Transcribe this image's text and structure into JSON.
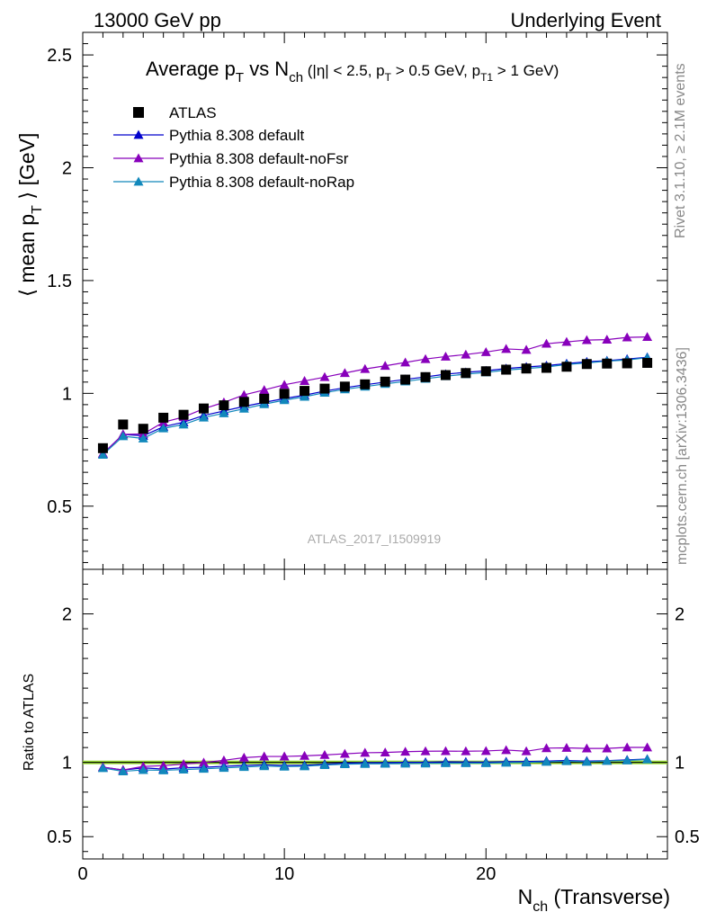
{
  "header": {
    "left": "13000 GeV pp",
    "right": "Underlying Event"
  },
  "title": {
    "main": "Average p",
    "main_sub": "T",
    "vs": " vs N",
    "vs_sub": "ch",
    "cuts_a": " (|η| < 2.5, p",
    "cuts_sub1": "T",
    "cuts_b": " > 0.5 GeV, p",
    "cuts_sub2": "T1",
    "cuts_c": " > 1 GeV)"
  },
  "side_labels": {
    "rivet": "Rivet 3.1.10, ≥ 2.1M events",
    "mcplots": "mcplots.cern.ch [arXiv:1306.3436]"
  },
  "analysis_id": "ATLAS_2017_I1509919",
  "colors": {
    "data": "#000000",
    "default": "#0000cc",
    "noFsr": "#8800bb",
    "noRap": "#1188bb",
    "ratio_band": "#99dd33"
  },
  "chart_data": [
    {
      "type": "scatter",
      "panel": "main",
      "ylabel_main": "⟨ mean p",
      "ylabel_sub": "T",
      "ylabel_tail": " ⟩ [GeV]",
      "xlim": [
        0,
        29
      ],
      "ylim": [
        0.22,
        2.6
      ],
      "yticks": [
        "0.5",
        "1",
        "1.5",
        "2",
        "2.5"
      ],
      "grid": false,
      "legend_position": "top-left",
      "x": [
        1,
        2,
        3,
        4,
        5,
        6,
        7,
        8,
        9,
        10,
        11,
        12,
        13,
        14,
        15,
        16,
        17,
        18,
        19,
        20,
        21,
        22,
        23,
        24,
        25,
        26,
        27,
        28
      ],
      "series": [
        {
          "name": "ATLAS",
          "marker": "square",
          "color": "#000000",
          "values": [
            0.757,
            0.862,
            0.843,
            0.892,
            0.905,
            0.933,
            0.947,
            0.962,
            0.976,
            0.998,
            1.011,
            1.021,
            1.03,
            1.04,
            1.052,
            1.061,
            1.072,
            1.081,
            1.09,
            1.098,
            1.105,
            1.11,
            1.113,
            1.118,
            1.13,
            1.132,
            1.133,
            1.135
          ]
        },
        {
          "name": "Pythia 8.308 default",
          "marker": "triangle",
          "color": "#0000cc",
          "values": [
            0.733,
            0.818,
            0.812,
            0.852,
            0.872,
            0.902,
            0.922,
            0.942,
            0.96,
            0.977,
            0.992,
            1.01,
            1.025,
            1.038,
            1.05,
            1.062,
            1.073,
            1.085,
            1.093,
            1.1,
            1.11,
            1.117,
            1.123,
            1.132,
            1.14,
            1.145,
            1.152,
            1.16
          ]
        },
        {
          "name": "Pythia 8.308 default-noFsr",
          "marker": "triangle",
          "color": "#8800bb",
          "values": [
            0.733,
            0.818,
            0.82,
            0.872,
            0.895,
            0.932,
            0.96,
            0.993,
            1.015,
            1.038,
            1.055,
            1.072,
            1.09,
            1.108,
            1.122,
            1.137,
            1.152,
            1.163,
            1.172,
            1.183,
            1.197,
            1.193,
            1.22,
            1.228,
            1.236,
            1.238,
            1.248,
            1.25
          ]
        },
        {
          "name": "Pythia 8.308 default-noRap",
          "marker": "triangle",
          "color": "#1188bb",
          "values": [
            0.728,
            0.81,
            0.8,
            0.845,
            0.862,
            0.893,
            0.912,
            0.932,
            0.952,
            0.97,
            0.985,
            1.003,
            1.018,
            1.03,
            1.042,
            1.053,
            1.065,
            1.076,
            1.085,
            1.093,
            1.103,
            1.11,
            1.117,
            1.128,
            1.135,
            1.143,
            1.148,
            1.158
          ]
        }
      ]
    },
    {
      "type": "line",
      "panel": "ratio",
      "ylabel": "Ratio to ATLAS",
      "xlabel_main": "N",
      "xlabel_sub": "ch",
      "xlabel_tail": " (Transverse)",
      "xlim": [
        0,
        29
      ],
      "ylim": [
        0.35,
        2.3
      ],
      "yticks": [
        "0.5",
        "1",
        "2"
      ],
      "xticks": [
        "0",
        "10",
        "20"
      ],
      "grid": false,
      "x": [
        1,
        2,
        3,
        4,
        5,
        6,
        7,
        8,
        9,
        10,
        11,
        12,
        13,
        14,
        15,
        16,
        17,
        18,
        19,
        20,
        21,
        22,
        23,
        24,
        25,
        26,
        27,
        28
      ],
      "series": [
        {
          "name": "Pythia 8.308 default",
          "color": "#0000cc",
          "values": [
            0.968,
            0.949,
            0.963,
            0.955,
            0.964,
            0.967,
            0.974,
            0.979,
            0.984,
            0.979,
            0.981,
            0.989,
            0.995,
            0.998,
            0.998,
            1.001,
            1.001,
            1.004,
            1.003,
            1.002,
            1.005,
            1.006,
            1.009,
            1.013,
            1.009,
            1.012,
            1.017,
            1.022
          ]
        },
        {
          "name": "Pythia 8.308 default-noFsr",
          "color": "#8800bb",
          "values": [
            0.968,
            0.949,
            0.973,
            0.978,
            0.989,
            0.999,
            1.014,
            1.032,
            1.04,
            1.04,
            1.044,
            1.05,
            1.058,
            1.065,
            1.067,
            1.072,
            1.075,
            1.076,
            1.075,
            1.077,
            1.083,
            1.075,
            1.096,
            1.098,
            1.094,
            1.094,
            1.101,
            1.101
          ]
        },
        {
          "name": "Pythia 8.308 default-noRap",
          "color": "#1188bb",
          "values": [
            0.962,
            0.94,
            0.949,
            0.947,
            0.952,
            0.957,
            0.963,
            0.969,
            0.975,
            0.972,
            0.974,
            0.982,
            0.988,
            0.99,
            0.991,
            0.992,
            0.993,
            0.995,
            0.995,
            0.995,
            0.998,
            1.0,
            1.004,
            1.009,
            1.004,
            1.01,
            1.013,
            1.02
          ]
        }
      ]
    }
  ]
}
